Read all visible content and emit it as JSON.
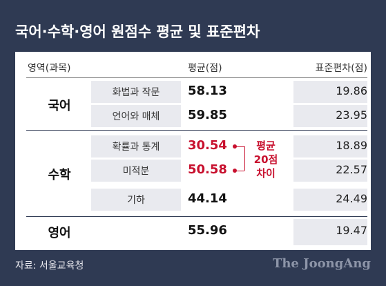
{
  "header": {
    "title": "국어·수학·영어 원점수 평균 및 표준편차"
  },
  "table": {
    "columns": [
      "영역(과목)",
      "평균(점)",
      "표준편차(점)"
    ],
    "groups": [
      {
        "area": "국어",
        "rows": [
          {
            "subject": "화법과 작문",
            "mean": 58.13,
            "sd": 19.86
          },
          {
            "subject": "언어와 매체",
            "mean": 59.85,
            "sd": 23.95
          }
        ]
      },
      {
        "area": "수학",
        "rows": [
          {
            "subject": "확률과 통계",
            "mean": 30.54,
            "sd": 18.89,
            "highlight": true
          },
          {
            "subject": "미적분",
            "mean": 50.58,
            "sd": 22.57,
            "highlight": true
          },
          {
            "subject": "기하",
            "mean": 44.14,
            "sd": 24.49
          }
        ]
      },
      {
        "area": "영어",
        "mean": 55.96,
        "sd": 19.47
      }
    ]
  },
  "annotation": {
    "lines": [
      "평균",
      "20점",
      "차이"
    ],
    "color": "#c8102e"
  },
  "footer": {
    "source": "자료: 서울교육청",
    "brand": "The JoongAng"
  }
}
